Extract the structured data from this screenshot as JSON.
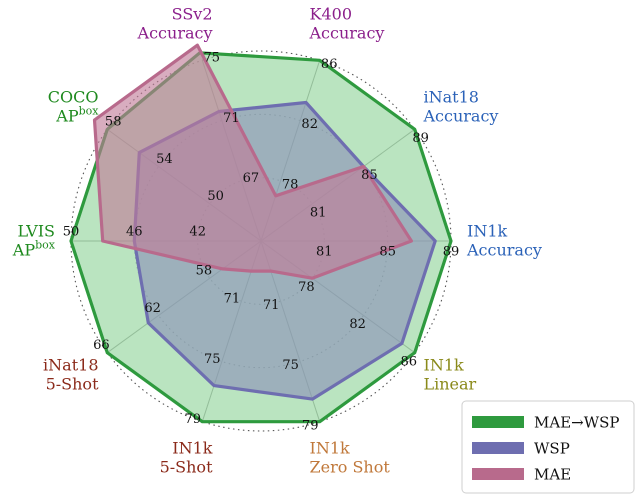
{
  "chart_data": {
    "type": "radar",
    "axes": [
      {
        "label_lines": [
          "K400",
          "Accuracy"
        ],
        "color": "#8b1f8b",
        "ticks": [
          78,
          82,
          86
        ],
        "range": [
          74,
          86
        ]
      },
      {
        "label_lines": [
          "iNat18",
          "Accuracy"
        ],
        "color": "#2b62b8",
        "ticks": [
          81,
          85,
          89
        ],
        "range": [
          77,
          89
        ]
      },
      {
        "label_lines": [
          "IN1k",
          "Accuracy"
        ],
        "color": "#2b62b8",
        "ticks": [
          81,
          85,
          89
        ],
        "range": [
          77,
          89
        ]
      },
      {
        "label_lines": [
          "IN1k",
          "Linear"
        ],
        "color": "#8a8a1a",
        "ticks": [
          78,
          82,
          86
        ],
        "range": [
          74,
          86
        ]
      },
      {
        "label_lines": [
          "IN1k",
          "Zero Shot"
        ],
        "color": "#c0783a",
        "ticks": [
          71,
          75,
          79
        ],
        "range": [
          67,
          79
        ]
      },
      {
        "label_lines": [
          "IN1k",
          "5-Shot"
        ],
        "color": "#8b2a1a",
        "ticks": [
          71,
          75,
          79
        ],
        "range": [
          67,
          79
        ]
      },
      {
        "label_lines": [
          "iNat18",
          "5-Shot"
        ],
        "color": "#8b2a1a",
        "ticks": [
          58,
          62,
          66
        ],
        "range": [
          54,
          66
        ]
      },
      {
        "label_lines": [
          "LVIS",
          "AP",
          "box"
        ],
        "color": "#1f8a1f",
        "ticks": [
          42,
          46,
          50
        ],
        "range": [
          38,
          50
        ]
      },
      {
        "label_lines": [
          "COCO",
          "AP",
          "box"
        ],
        "color": "#1f8a1f",
        "ticks": [
          50,
          54,
          58
        ],
        "range": [
          46,
          58
        ]
      },
      {
        "label_lines": [
          "SSv2",
          "Accuracy"
        ],
        "color": "#8b1f8b",
        "ticks": [
          67,
          71,
          75
        ],
        "range": [
          63,
          75
        ]
      }
    ],
    "series": [
      {
        "name": "MAE→WSP",
        "color": "#2e9a3e",
        "fill": "#8fd49a",
        "values": [
          86,
          89,
          89,
          86,
          79,
          79,
          66,
          50,
          58,
          75.5
        ]
      },
      {
        "name": "WSP",
        "color": "#6e6eb0",
        "fill": "#8a8fb8",
        "values": [
          83.2,
          85,
          88,
          85,
          77.5,
          76.6,
          62.8,
          46,
          55.5,
          71.6
        ]
      },
      {
        "name": "MAE",
        "color": "#b86a8c",
        "fill": "#c07a98",
        "values": [
          77,
          85,
          86.5,
          78,
          69,
          69,
          57,
          48,
          59,
          76
        ]
      }
    ],
    "legend_position": "bottom-right"
  }
}
